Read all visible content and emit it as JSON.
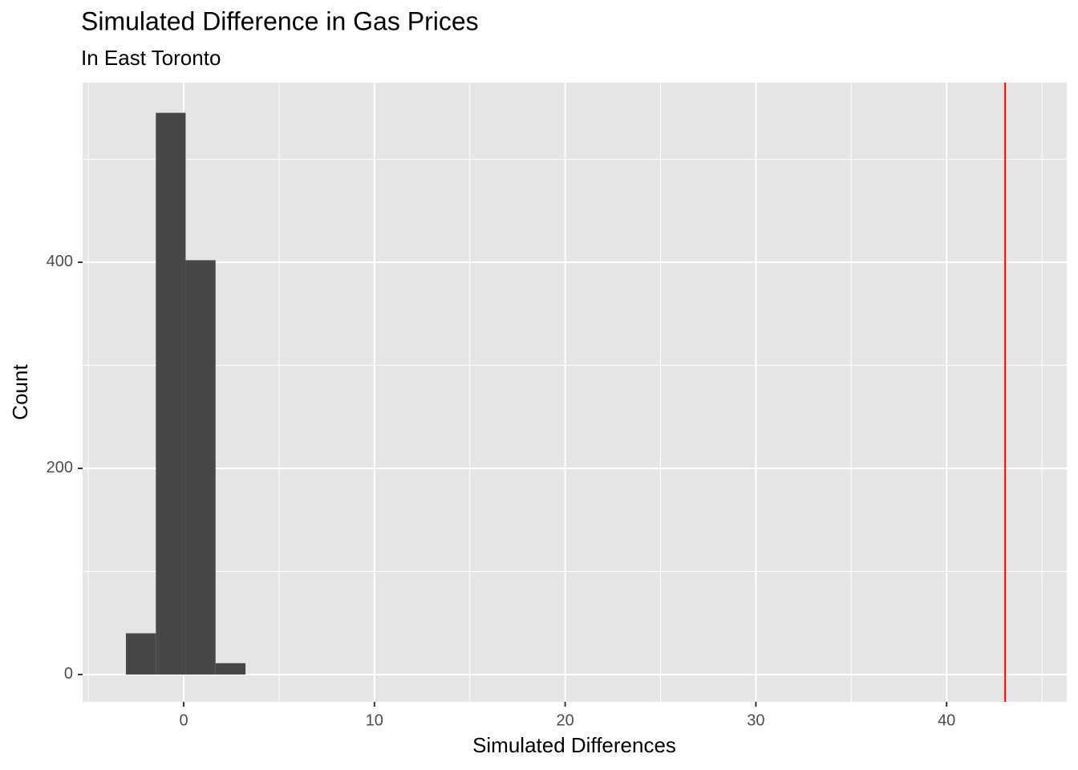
{
  "chart_data": {
    "type": "histogram",
    "title": "Simulated Difference in Gas Prices",
    "subtitle": "In East Toronto",
    "x_label": "Simulated Differences",
    "y_label": "Count",
    "bins": [
      -3.03,
      -1.46,
      0.1,
      1.67,
      3.24
    ],
    "values": [
      40,
      545,
      402,
      11
    ],
    "color": "#474747",
    "xlim": [
      -5.3,
      46.3
    ],
    "xticks": [
      0,
      10,
      20,
      30,
      40
    ],
    "x_minor_grid": [
      -5,
      5,
      15,
      25,
      35,
      45
    ],
    "ylim": [
      -26.5,
      574.3
    ],
    "yticks": [
      0,
      200,
      400
    ],
    "y_minor_grid": [
      100,
      300,
      500
    ],
    "grid": true,
    "panel_color": "#e5e5e5",
    "vline": 43.07,
    "vline_color": "#ff0000"
  }
}
